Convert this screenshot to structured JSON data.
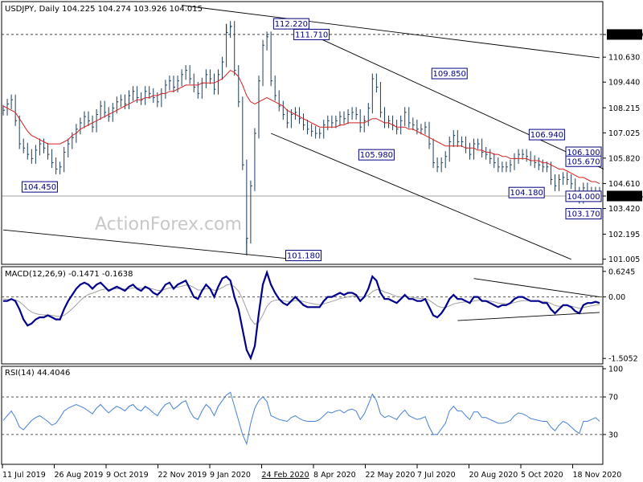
{
  "price_panel": {
    "header": "USDJPY, Daily  104.225 104.274 103.926 104.015",
    "watermark": "ActionForex.com",
    "ylim": [
      100.8,
      113.2
    ],
    "ticks": [
      "111.710",
      "110.630",
      "109.440",
      "108.215",
      "107.025",
      "105.820",
      "104.610",
      "104.015",
      "103.420",
      "102.195",
      "101.005"
    ],
    "tick_values": [
      111.71,
      110.63,
      109.44,
      108.215,
      107.025,
      105.82,
      104.61,
      104.015,
      103.42,
      102.195,
      101.005
    ],
    "highlight_ticks": [
      "111.710",
      "104.015"
    ],
    "annotations": [
      {
        "text": "112.220",
        "x": 71,
        "y": 112.22
      },
      {
        "text": "111.710",
        "x": 76,
        "y": 111.71
      },
      {
        "text": "109.850",
        "x": 110,
        "y": 109.85
      },
      {
        "text": "105.980",
        "x": 92,
        "y": 105.98
      },
      {
        "text": "106.940",
        "x": 134,
        "y": 106.94
      },
      {
        "text": "104.180",
        "x": 129,
        "y": 104.18
      },
      {
        "text": "104.000",
        "x": 150,
        "y": 104.0
      },
      {
        "text": "106.100",
        "x": 148,
        "y": 106.1
      },
      {
        "text": "105.670",
        "x": 163,
        "y": 105.67
      },
      {
        "text": "103.170",
        "x": 165,
        "y": 103.17
      },
      {
        "text": "104.450",
        "x": 9,
        "y": 104.45
      },
      {
        "text": "101.180",
        "x": 74,
        "y": 101.18
      }
    ],
    "close_series": [
      108.1,
      108.4,
      108.6,
      107.6,
      106.5,
      106.3,
      106.0,
      105.8,
      106.2,
      106.5,
      106.3,
      106.0,
      105.6,
      105.3,
      105.4,
      106.1,
      106.5,
      106.8,
      107.2,
      107.5,
      107.8,
      107.6,
      107.3,
      107.9,
      108.3,
      108.0,
      107.8,
      108.2,
      108.5,
      108.6,
      108.4,
      108.8,
      109.0,
      108.7,
      108.6,
      109.0,
      108.9,
      108.7,
      108.5,
      108.9,
      109.3,
      109.5,
      109.2,
      109.5,
      109.8,
      110.0,
      109.6,
      109.2,
      108.9,
      109.4,
      109.8,
      109.6,
      109.1,
      109.8,
      110.4,
      111.8,
      112.1,
      110.0,
      108.5,
      105.5,
      102.0,
      104.5,
      107.0,
      109.5,
      111.2,
      111.6,
      109.5,
      108.8,
      108.3,
      107.9,
      107.5,
      107.9,
      108.0,
      107.7,
      107.4,
      107.2,
      107.1,
      107.0,
      107.0,
      107.4,
      107.6,
      107.5,
      107.6,
      107.8,
      107.7,
      107.9,
      108.0,
      107.9,
      107.3,
      107.6,
      108.2,
      109.6,
      109.2,
      108.0,
      107.5,
      107.6,
      107.4,
      107.2,
      107.6,
      108.0,
      107.5,
      107.4,
      107.2,
      107.2,
      107.3,
      106.5,
      105.6,
      105.4,
      105.6,
      105.9,
      106.6,
      106.9,
      106.6,
      106.6,
      106.3,
      106.0,
      106.5,
      106.5,
      106.1,
      106.0,
      105.8,
      105.6,
      105.4,
      105.4,
      105.4,
      105.5,
      105.8,
      106.0,
      106.0,
      105.9,
      105.7,
      105.6,
      105.5,
      105.4,
      105.4,
      104.8,
      104.5,
      104.8,
      104.9,
      104.8,
      104.6,
      104.2,
      103.9,
      104.4,
      104.2,
      104.0,
      104.2,
      104.1
    ],
    "ma_series": [
      108.3,
      108.2,
      108.1,
      108.0,
      107.7,
      107.4,
      107.1,
      106.9,
      106.8,
      106.7,
      106.6,
      106.5,
      106.5,
      106.5,
      106.5,
      106.6,
      106.7,
      106.9,
      107.0,
      107.2,
      107.3,
      107.4,
      107.5,
      107.6,
      107.7,
      107.8,
      107.9,
      108.0,
      108.1,
      108.2,
      108.3,
      108.4,
      108.5,
      108.6,
      108.6,
      108.7,
      108.7,
      108.8,
      108.8,
      108.9,
      108.9,
      109.0,
      109.0,
      109.1,
      109.2,
      109.3,
      109.3,
      109.3,
      109.3,
      109.4,
      109.4,
      109.4,
      109.4,
      109.5,
      109.6,
      109.8,
      110.0,
      109.9,
      109.7,
      109.3,
      108.8,
      108.5,
      108.4,
      108.5,
      108.6,
      108.7,
      108.6,
      108.5,
      108.4,
      108.3,
      108.1,
      108.0,
      107.9,
      107.8,
      107.7,
      107.6,
      107.5,
      107.4,
      107.3,
      107.3,
      107.3,
      107.3,
      107.3,
      107.4,
      107.4,
      107.5,
      107.5,
      107.5,
      107.5,
      107.5,
      107.6,
      107.7,
      107.7,
      107.6,
      107.5,
      107.5,
      107.4,
      107.3,
      107.3,
      107.3,
      107.2,
      107.2,
      107.1,
      107.0,
      106.9,
      106.8,
      106.7,
      106.6,
      106.5,
      106.4,
      106.4,
      106.4,
      106.4,
      106.4,
      106.3,
      106.3,
      106.3,
      106.2,
      106.2,
      106.1,
      106.1,
      106.0,
      106.0,
      105.9,
      105.9,
      105.8,
      105.8,
      105.8,
      105.8,
      105.8,
      105.7,
      105.7,
      105.7,
      105.6,
      105.6,
      105.5,
      105.4,
      105.3,
      105.3,
      105.2,
      105.1,
      105.0,
      104.9,
      104.9,
      104.8,
      104.7,
      104.7,
      104.6
    ]
  },
  "macd_panel": {
    "header": "MACD(12,26,9) -0.1471 -0.1638",
    "ylim": [
      -1.6,
      0.7
    ],
    "ticks": [
      "0.6245",
      "0.00",
      "-1.5052"
    ],
    "tick_values": [
      0.6245,
      0.0,
      -1.5052
    ],
    "macd_series": [
      -0.1,
      -0.1,
      -0.05,
      -0.1,
      -0.3,
      -0.55,
      -0.7,
      -0.65,
      -0.55,
      -0.5,
      -0.5,
      -0.45,
      -0.5,
      -0.55,
      -0.55,
      -0.3,
      -0.1,
      0.05,
      0.2,
      0.3,
      0.35,
      0.3,
      0.2,
      0.3,
      0.35,
      0.25,
      0.15,
      0.2,
      0.25,
      0.2,
      0.15,
      0.25,
      0.3,
      0.2,
      0.15,
      0.25,
      0.2,
      0.1,
      0.05,
      0.15,
      0.3,
      0.35,
      0.2,
      0.3,
      0.35,
      0.4,
      0.2,
      0.0,
      -0.05,
      0.15,
      0.3,
      0.2,
      0.0,
      0.25,
      0.45,
      0.5,
      0.4,
      0.0,
      -0.3,
      -0.8,
      -1.3,
      -1.5,
      -1.2,
      -0.4,
      0.3,
      0.6,
      0.3,
      0.1,
      -0.05,
      -0.15,
      -0.2,
      -0.1,
      0.0,
      -0.1,
      -0.2,
      -0.25,
      -0.25,
      -0.25,
      -0.25,
      -0.1,
      0.0,
      0.0,
      0.05,
      0.1,
      0.05,
      0.1,
      0.1,
      0.05,
      -0.1,
      0.0,
      0.2,
      0.5,
      0.4,
      0.1,
      -0.05,
      -0.05,
      -0.1,
      -0.15,
      -0.05,
      0.05,
      -0.05,
      -0.05,
      -0.1,
      -0.1,
      -0.05,
      -0.25,
      -0.45,
      -0.5,
      -0.4,
      -0.25,
      -0.05,
      0.05,
      -0.05,
      -0.05,
      -0.1,
      -0.15,
      0.0,
      0.0,
      -0.1,
      -0.1,
      -0.15,
      -0.2,
      -0.25,
      -0.2,
      -0.2,
      -0.15,
      -0.05,
      0.0,
      0.0,
      -0.05,
      -0.1,
      -0.1,
      -0.1,
      -0.15,
      -0.15,
      -0.3,
      -0.4,
      -0.3,
      -0.2,
      -0.2,
      -0.25,
      -0.35,
      -0.4,
      -0.2,
      -0.15,
      -0.15,
      -0.12,
      -0.15
    ],
    "signal_series": [
      -0.05,
      -0.06,
      -0.06,
      -0.07,
      -0.12,
      -0.2,
      -0.3,
      -0.37,
      -0.41,
      -0.43,
      -0.44,
      -0.44,
      -0.45,
      -0.47,
      -0.48,
      -0.45,
      -0.38,
      -0.29,
      -0.19,
      -0.09,
      0.0,
      0.06,
      0.09,
      0.13,
      0.17,
      0.19,
      0.18,
      0.19,
      0.2,
      0.2,
      0.19,
      0.2,
      0.22,
      0.22,
      0.21,
      0.22,
      0.21,
      0.19,
      0.16,
      0.16,
      0.19,
      0.22,
      0.22,
      0.24,
      0.26,
      0.29,
      0.28,
      0.23,
      0.17,
      0.17,
      0.2,
      0.2,
      0.16,
      0.18,
      0.23,
      0.29,
      0.31,
      0.25,
      0.14,
      -0.05,
      -0.3,
      -0.54,
      -0.67,
      -0.62,
      -0.44,
      -0.23,
      -0.12,
      -0.08,
      -0.07,
      -0.09,
      -0.11,
      -0.11,
      -0.09,
      -0.09,
      -0.11,
      -0.14,
      -0.16,
      -0.18,
      -0.19,
      -0.17,
      -0.14,
      -0.11,
      -0.08,
      -0.04,
      -0.02,
      0.0,
      0.02,
      0.03,
      0.0,
      0.0,
      0.04,
      0.13,
      0.18,
      0.17,
      0.12,
      0.09,
      0.05,
      0.01,
      0.0,
      0.01,
      0.0,
      -0.01,
      -0.03,
      -0.04,
      -0.04,
      -0.08,
      -0.15,
      -0.22,
      -0.26,
      -0.26,
      -0.22,
      -0.17,
      -0.15,
      -0.13,
      -0.12,
      -0.13,
      -0.1,
      -0.08,
      -0.08,
      -0.09,
      -0.1,
      -0.12,
      -0.15,
      -0.16,
      -0.17,
      -0.16,
      -0.14,
      -0.11,
      -0.09,
      -0.09,
      -0.09,
      -0.09,
      -0.1,
      -0.11,
      -0.12,
      -0.16,
      -0.21,
      -0.23,
      -0.22,
      -0.22,
      -0.23,
      -0.25,
      -0.28,
      -0.26,
      -0.24,
      -0.22,
      -0.2,
      -0.19
    ]
  },
  "rsi_panel": {
    "header": "RSI(14) 44.4046",
    "ylim": [
      0,
      100
    ],
    "ticks": [
      "100",
      "70",
      "30"
    ],
    "tick_values": [
      100,
      70,
      30
    ],
    "levels": [
      70,
      30
    ],
    "rsi_series": [
      45,
      50,
      55,
      48,
      38,
      35,
      40,
      45,
      48,
      50,
      47,
      44,
      40,
      42,
      48,
      55,
      58,
      60,
      62,
      60,
      58,
      55,
      52,
      58,
      62,
      57,
      53,
      57,
      60,
      58,
      55,
      60,
      62,
      57,
      55,
      60,
      57,
      53,
      50,
      57,
      62,
      64,
      57,
      60,
      64,
      66,
      55,
      48,
      46,
      55,
      62,
      58,
      50,
      60,
      66,
      72,
      75,
      60,
      45,
      30,
      20,
      42,
      58,
      66,
      70,
      65,
      50,
      48,
      46,
      45,
      44,
      48,
      50,
      47,
      45,
      44,
      44,
      44,
      46,
      50,
      54,
      53,
      55,
      56,
      53,
      56,
      57,
      55,
      46,
      52,
      62,
      73,
      66,
      52,
      48,
      50,
      48,
      46,
      52,
      56,
      50,
      48,
      46,
      47,
      49,
      38,
      30,
      30,
      36,
      42,
      55,
      60,
      55,
      55,
      50,
      46,
      54,
      54,
      48,
      48,
      46,
      44,
      42,
      42,
      43,
      45,
      50,
      53,
      52,
      50,
      47,
      46,
      45,
      44,
      44,
      38,
      34,
      40,
      44,
      42,
      38,
      34,
      31,
      44,
      44,
      46,
      48,
      44
    ]
  },
  "x_axis": {
    "labels": [
      "11 Jul 2019",
      "26 Aug 2019",
      "9 Oct 2019",
      "22 Nov 2019",
      "9 Jan 2020",
      "24 Feb 2020",
      "8 Apr 2020",
      "22 May 2020",
      "7 Jul 2020",
      "20 Aug 2020",
      "5 Oct 2020",
      "18 Nov 2020"
    ],
    "highlight_label": "24 Feb 2020"
  },
  "colors": {
    "price": "#1a3d5c",
    "ma": "#d42020",
    "macd": "#00008b",
    "signal": "#a0a0a0",
    "rsi": "#4682d4",
    "trend": "#000000",
    "grid_dot": "#555555",
    "label_border": "#000080",
    "highlight_bg": "#000000",
    "highlight_fg": "#ffffff"
  }
}
